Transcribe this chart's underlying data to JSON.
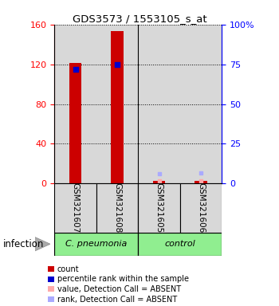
{
  "title": "GDS3573 / 1553105_s_at",
  "samples": [
    "GSM321607",
    "GSM321608",
    "GSM321605",
    "GSM321606"
  ],
  "count_values": [
    121,
    153,
    3,
    3
  ],
  "rank_values": [
    115,
    120,
    null,
    null
  ],
  "absent_value_values": [
    null,
    null,
    3,
    3
  ],
  "absent_rank_values": [
    null,
    null,
    10,
    11
  ],
  "ylim": [
    0,
    160
  ],
  "yticks_left": [
    0,
    40,
    80,
    120,
    160
  ],
  "yticks_right": [
    0,
    25,
    50,
    75,
    100
  ],
  "bar_color": "#cc0000",
  "rank_color": "#0000cc",
  "absent_val_color": "#ffaaaa",
  "absent_rank_color": "#aaaaff",
  "bg_color": "#d8d8d8",
  "group_color": "#90EE90",
  "infection_label": "infection",
  "groups": [
    {
      "name": "C. pneumonia",
      "start": 0,
      "end": 2
    },
    {
      "name": "control",
      "start": 2,
      "end": 4
    }
  ],
  "legend_items": [
    {
      "color": "#cc0000",
      "label": "count"
    },
    {
      "color": "#0000cc",
      "label": "percentile rank within the sample"
    },
    {
      "color": "#ffaaaa",
      "label": "value, Detection Call = ABSENT"
    },
    {
      "color": "#aaaaff",
      "label": "rank, Detection Call = ABSENT"
    }
  ]
}
